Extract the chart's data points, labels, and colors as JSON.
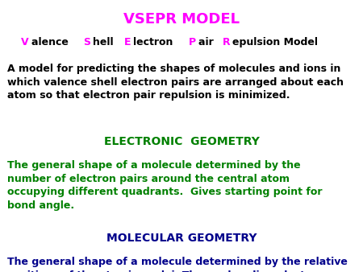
{
  "bg_color": "#ffffff",
  "title": "VSEPR MODEL",
  "title_color": "#ff00ff",
  "title_fontsize": 13,
  "line2_parts": [
    {
      "text": "V",
      "color": "#ff00ff"
    },
    {
      "text": "alence ",
      "color": "#000000"
    },
    {
      "text": "S",
      "color": "#ff00ff"
    },
    {
      "text": "hell ",
      "color": "#000000"
    },
    {
      "text": "E",
      "color": "#ff00ff"
    },
    {
      "text": "lectron ",
      "color": "#000000"
    },
    {
      "text": "P",
      "color": "#ff00ff"
    },
    {
      "text": "air ",
      "color": "#000000"
    },
    {
      "text": "R",
      "color": "#ff00ff"
    },
    {
      "text": "epulsion Model",
      "color": "#000000"
    }
  ],
  "line2_fontsize": 9,
  "para1": "A model for predicting the shapes of molecules and ions in\nwhich valence shell electron pairs are arranged about each\natom so that electron pair repulsion is minimized.",
  "para1_color": "#000000",
  "para1_fontsize": 9,
  "section1_title": "ELECTRONIC  GEOMETRY",
  "section1_title_color": "#008000",
  "section1_title_fontsize": 10,
  "section1_body": "The general shape of a molecule determined by the\nnumber of electron pairs around the central atom\noccupying different quadrants.  Gives starting point for\nbond angle.",
  "section1_body_color": "#008000",
  "section1_body_fontsize": 9,
  "section2_title": "MOLECULAR GEOMETRY",
  "section2_title_color": "#00008b",
  "section2_title_fontsize": 10,
  "section2_body": "The general shape of a molecule determined by the relative\npositions of the atomic nuclei. The nonbonding electron\npairs modifiy the geometry.",
  "section2_body_color": "#00008b",
  "section2_body_fontsize": 9
}
